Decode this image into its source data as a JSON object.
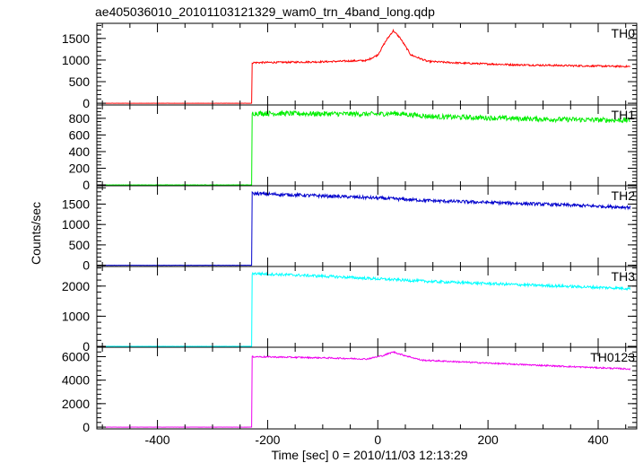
{
  "chart_data": {
    "type": "line",
    "title": "ae405036010_20101103121329_wam0_trn_4band_long.qdp",
    "xlabel": "Time [sec] 0 = 2010/11/03 12:13:29",
    "ylabel": "Counts/sec",
    "xlim": [
      -510,
      470
    ],
    "xticks": [
      -400,
      -200,
      0,
      200,
      400
    ],
    "step_time": -228,
    "t_start": -500,
    "t_end": 458,
    "panels": [
      {
        "name": "TH0",
        "color": "#ff0000",
        "ylim": [
          -40,
          1850
        ],
        "yticks": [
          0,
          500,
          1000,
          1500
        ],
        "pre_level": 0,
        "noise": 20,
        "levels": [
          [
            -228,
            940
          ],
          [
            -100,
            960
          ],
          [
            -20,
            990
          ],
          [
            0,
            1120
          ],
          [
            15,
            1450
          ],
          [
            28,
            1680
          ],
          [
            40,
            1520
          ],
          [
            60,
            1120
          ],
          [
            90,
            970
          ],
          [
            150,
            930
          ],
          [
            250,
            890
          ],
          [
            350,
            870
          ],
          [
            458,
            850
          ]
        ]
      },
      {
        "name": "TH1",
        "color": "#00ee00",
        "ylim": [
          -10,
          960
        ],
        "yticks": [
          0,
          200,
          400,
          600,
          800
        ],
        "pre_level": 0,
        "noise": 30,
        "levels": [
          [
            -228,
            860
          ],
          [
            0,
            850
          ],
          [
            30,
            860
          ],
          [
            100,
            820
          ],
          [
            300,
            790
          ],
          [
            458,
            775
          ]
        ]
      },
      {
        "name": "TH2",
        "color": "#0000cc",
        "ylim": [
          -30,
          1950
        ],
        "yticks": [
          0,
          500,
          1000,
          1500,
          1900
        ],
        "ytick_labels": [
          "0",
          "500",
          "1000",
          "1500",
          ""
        ],
        "pre_level": 0,
        "noise": 40,
        "levels": [
          [
            -228,
            1760
          ],
          [
            -100,
            1700
          ],
          [
            0,
            1650
          ],
          [
            100,
            1580
          ],
          [
            250,
            1520
          ],
          [
            458,
            1420
          ]
        ]
      },
      {
        "name": "TH3",
        "color": "#00ffff",
        "ylim": [
          -30,
          2650
        ],
        "yticks": [
          0,
          1000,
          2000
        ],
        "pre_level": 0,
        "noise": 45,
        "levels": [
          [
            -228,
            2420
          ],
          [
            -100,
            2330
          ],
          [
            0,
            2240
          ],
          [
            100,
            2150
          ],
          [
            250,
            2050
          ],
          [
            458,
            1920
          ]
        ]
      },
      {
        "name": "TH0123",
        "color": "#ee00ee",
        "ylim": [
          -150,
          6800
        ],
        "yticks": [
          0,
          2000,
          4000,
          6000
        ],
        "pre_level": 0,
        "noise": 60,
        "levels": [
          [
            -228,
            6000
          ],
          [
            -100,
            5900
          ],
          [
            -20,
            5800
          ],
          [
            10,
            6100
          ],
          [
            28,
            6400
          ],
          [
            45,
            6150
          ],
          [
            80,
            5700
          ],
          [
            200,
            5450
          ],
          [
            350,
            5150
          ],
          [
            458,
            4950
          ]
        ]
      }
    ]
  }
}
